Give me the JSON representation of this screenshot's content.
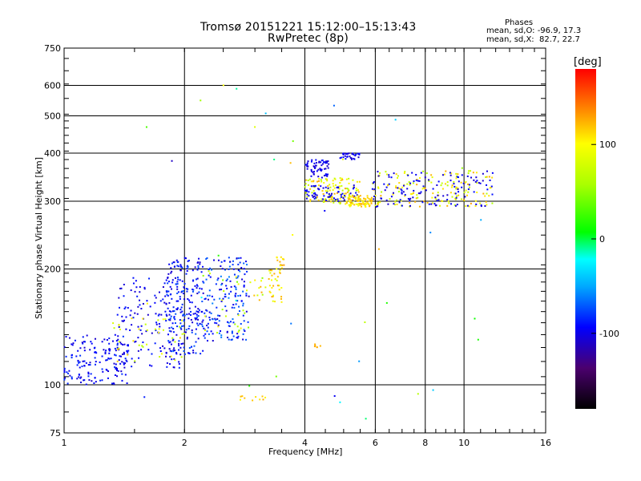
{
  "header": {
    "title_line1": "Tromsø 20151221 15:12:00–15:13:43",
    "title_line2": "RwPretec (8p)",
    "phase_heading": "Phases",
    "phase_stats_o": "mean, sd,O: -96.9, 17.3",
    "phase_stats_x": "mean, sd,X:  82.7, 22.7"
  },
  "colorbar": {
    "unit_label": "[deg]",
    "min": -180,
    "max": 180,
    "ticks": [
      "100",
      "0",
      "-100"
    ],
    "tick_values": [
      100,
      0,
      -100
    ]
  },
  "chart_data": {
    "type": "scatter",
    "xlabel": "Frequency [MHz]",
    "ylabel": "Stationary phase Virtual Height [km]",
    "xscale": "log",
    "yscale": "log",
    "xlim": [
      1,
      16
    ],
    "ylim": [
      75,
      750
    ],
    "x_ticks": [
      "1",
      "2",
      "4",
      "6",
      "8",
      "10",
      "16"
    ],
    "x_tick_values": [
      1,
      2,
      4,
      6,
      8,
      10,
      16
    ],
    "y_ticks": [
      "75",
      "100",
      "200",
      "300",
      "400",
      "500",
      "600",
      "750"
    ],
    "y_tick_values": [
      75,
      100,
      200,
      300,
      400,
      500,
      600,
      750
    ],
    "grid": true,
    "color_by": "phase (deg)",
    "clusters": [
      {
        "x": [
          1.0,
          1.45
        ],
        "y": [
          100,
          135
        ],
        "phase": [
          -110,
          -80
        ],
        "n": 160
      },
      {
        "x": [
          1.35,
          2.0
        ],
        "y": [
          110,
          190
        ],
        "phase": [
          -110,
          -85
        ],
        "n": 150
      },
      {
        "x": [
          1.8,
          2.25
        ],
        "y": [
          120,
          215
        ],
        "phase": [
          -110,
          -70
        ],
        "n": 220
      },
      {
        "x": [
          1.3,
          2.0
        ],
        "y": [
          115,
          150
        ],
        "phase": [
          60,
          120
        ],
        "n": 40
      },
      {
        "x": [
          2.25,
          2.9
        ],
        "y": [
          130,
          215
        ],
        "phase": [
          -110,
          -60
        ],
        "n": 170
      },
      {
        "x": [
          2.2,
          2.9
        ],
        "y": [
          135,
          200
        ],
        "phase": [
          40,
          110
        ],
        "n": 25
      },
      {
        "x": [
          2.9,
          3.2
        ],
        "y": [
          165,
          190
        ],
        "phase": [
          50,
          130
        ],
        "n": 12
      },
      {
        "x": [
          3.25,
          3.5
        ],
        "y": [
          160,
          200
        ],
        "phase": [
          80,
          130
        ],
        "n": 30
      },
      {
        "x": [
          3.35,
          3.55
        ],
        "y": [
          195,
          215
        ],
        "phase": [
          90,
          130
        ],
        "n": 15
      },
      {
        "x": [
          4.0,
          4.6
        ],
        "y": [
          345,
          385
        ],
        "phase": [
          -110,
          -90
        ],
        "n": 60
      },
      {
        "x": [
          4.9,
          5.5
        ],
        "y": [
          385,
          400
        ],
        "phase": [
          -110,
          -90
        ],
        "n": 30
      },
      {
        "x": [
          4.0,
          5.5
        ],
        "y": [
          295,
          345
        ],
        "phase": [
          60,
          130
        ],
        "n": 130
      },
      {
        "x": [
          4.0,
          5.5
        ],
        "y": [
          300,
          330
        ],
        "phase": [
          -110,
          -90
        ],
        "n": 60
      },
      {
        "x": [
          5.1,
          5.9
        ],
        "y": [
          290,
          310
        ],
        "phase": [
          90,
          130
        ],
        "n": 80
      },
      {
        "x": [
          5.9,
          11.8
        ],
        "y": [
          290,
          360
        ],
        "phase": [
          60,
          130
        ],
        "n": 150
      },
      {
        "x": [
          5.9,
          11.8
        ],
        "y": [
          290,
          360
        ],
        "phase": [
          -110,
          -90
        ],
        "n": 120
      },
      {
        "x": [
          2.75,
          3.2
        ],
        "y": [
          91,
          94
        ],
        "phase": [
          100,
          130
        ],
        "n": 10
      },
      {
        "x": [
          4.2,
          4.4
        ],
        "y": [
          125,
          128
        ],
        "phase": [
          120,
          130
        ],
        "n": 6
      },
      {
        "x": [
          1.5,
          12.0
        ],
        "y": [
          80,
          620
        ],
        "phase": [
          -120,
          130
        ],
        "n": 40
      }
    ]
  }
}
